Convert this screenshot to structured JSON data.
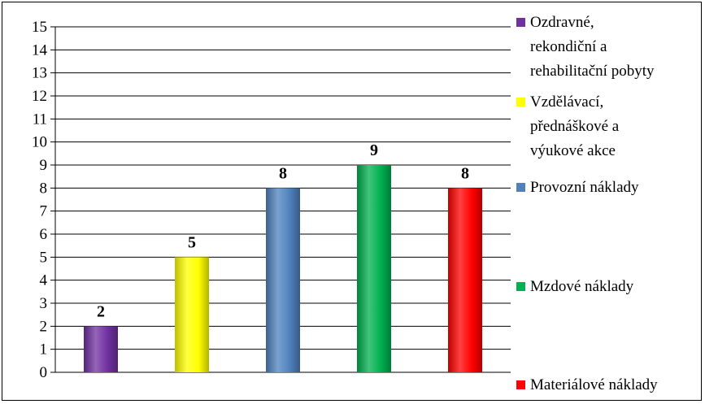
{
  "chart_data": {
    "type": "bar",
    "title": "",
    "xlabel": "",
    "ylabel": "",
    "ylim": [
      0,
      15
    ],
    "yticks": [
      0,
      1,
      2,
      3,
      4,
      5,
      6,
      7,
      8,
      9,
      10,
      11,
      12,
      13,
      14,
      15
    ],
    "grid": true,
    "legend_position": "right",
    "bars": [
      {
        "legend": [
          "Ozdravné,",
          "rekondiční a",
          "rehabilitační pobyty"
        ],
        "value": 2,
        "label": "2",
        "color": "#7030a0"
      },
      {
        "legend": [
          "Vzdělávací,",
          "přednáškové a",
          "výukové akce"
        ],
        "value": 5,
        "label": "5",
        "color": "#ffff00"
      },
      {
        "legend": [
          "Provozní náklady"
        ],
        "value": 8,
        "label": "8",
        "color": "#4f81bd"
      },
      {
        "legend": [
          "Mzdové náklady"
        ],
        "value": 9,
        "label": "9",
        "color": "#00b050"
      },
      {
        "legend": [
          "Materiálové náklady"
        ],
        "value": 8,
        "label": "8",
        "color": "#ff0000"
      }
    ]
  }
}
